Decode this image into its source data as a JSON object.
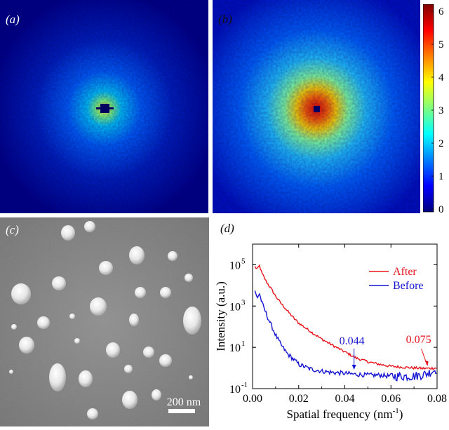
{
  "panels": {
    "a": {
      "label": "(a)"
    },
    "b": {
      "label": "(b)"
    },
    "c": {
      "label": "(c)",
      "scale_bar": "200 nm"
    },
    "d": {
      "label": "(d)"
    }
  },
  "colorbar": {
    "ticks": [
      "0",
      "1",
      "2",
      "3",
      "4",
      "5",
      "6"
    ],
    "colormap": [
      "#00007f",
      "#0000ff",
      "#007fff",
      "#00ffff",
      "#7fff7f",
      "#ffff00",
      "#ff7f00",
      "#ff0000",
      "#7f0000"
    ]
  },
  "chart_data": {
    "type": "line",
    "xlabel": "Spatial frequency (nm",
    "xlabel_sup": "-1",
    "xlabel_end": ")",
    "ylabel": "Intensity (a.u.)",
    "xlim": [
      0,
      0.08
    ],
    "ylim": [
      0.1,
      1000000
    ],
    "yscale": "log",
    "x_ticks": [
      "0.00",
      "0.02",
      "0.04",
      "0.06",
      "0.08"
    ],
    "y_ticks": [
      {
        "base": "10",
        "exp": "-1"
      },
      {
        "base": "10",
        "exp": "1"
      },
      {
        "base": "10",
        "exp": "3"
      },
      {
        "base": "10",
        "exp": "5"
      }
    ],
    "legend_position": "top-right",
    "series": [
      {
        "name": "After",
        "color": "#e8141c",
        "x": [
          0.001,
          0.002,
          0.003,
          0.004,
          0.006,
          0.008,
          0.01,
          0.012,
          0.015,
          0.018,
          0.02,
          0.025,
          0.03,
          0.035,
          0.04,
          0.045,
          0.05,
          0.055,
          0.06,
          0.065,
          0.07,
          0.075,
          0.08
        ],
        "y": [
          80000,
          60000,
          90000,
          40000,
          15000,
          7000,
          3000,
          1500,
          600,
          250,
          150,
          60,
          25,
          12,
          6,
          3,
          2,
          1.5,
          1.2,
          1.1,
          1.0,
          0.95,
          1.0
        ]
      },
      {
        "name": "Before",
        "color": "#1414d2",
        "x": [
          0.001,
          0.002,
          0.003,
          0.004,
          0.006,
          0.008,
          0.01,
          0.012,
          0.015,
          0.018,
          0.02,
          0.025,
          0.03,
          0.035,
          0.04,
          0.044,
          0.05,
          0.055,
          0.06,
          0.065,
          0.07,
          0.075,
          0.08
        ],
        "y": [
          5000,
          2500,
          4000,
          1500,
          400,
          120,
          40,
          15,
          5,
          2.5,
          1.5,
          0.9,
          0.7,
          0.6,
          0.55,
          0.5,
          0.45,
          0.45,
          0.4,
          0.4,
          0.4,
          0.5,
          0.9
        ]
      }
    ],
    "annotations": [
      {
        "text": "0.044",
        "x": 0.044,
        "color": "#1414d2"
      },
      {
        "text": "0.075",
        "x": 0.075,
        "color": "#e8141c"
      }
    ]
  }
}
